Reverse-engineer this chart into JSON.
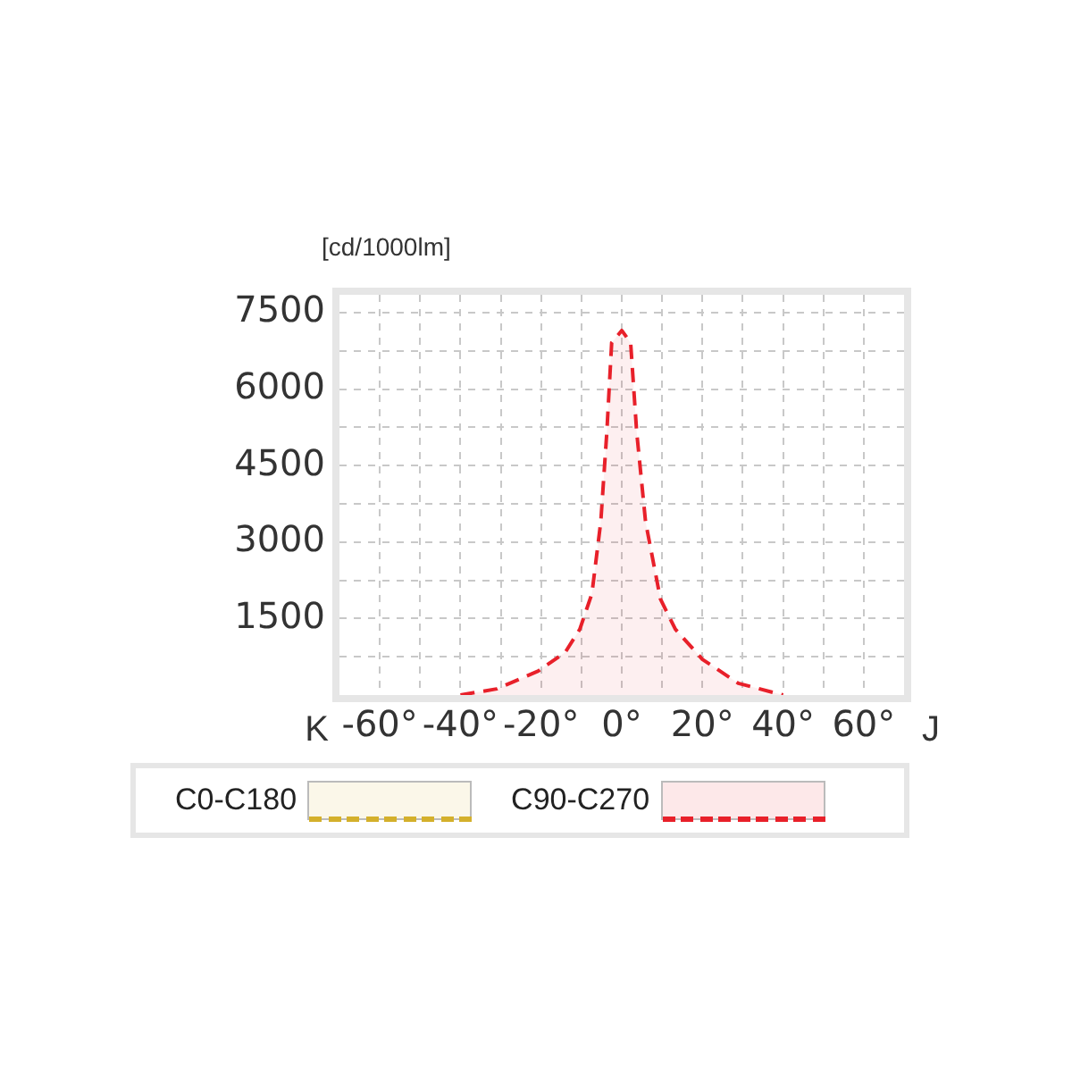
{
  "chart_data": {
    "type": "area",
    "ylabel": "[cd/1000lm]",
    "annotations": [
      "K",
      "J"
    ],
    "x": [
      -40,
      -31,
      -20.7,
      -14,
      -10.4,
      -7.4,
      -5.2,
      -3.7,
      -2.5,
      0,
      2.2,
      3.7,
      5.9,
      9.6,
      13.3,
      20,
      28.9,
      40
    ],
    "series": [
      {
        "name": "C0-C180",
        "color": "#d4b02c",
        "values": [
          null,
          null,
          null,
          null,
          null,
          null,
          null,
          null,
          null,
          null,
          null,
          null,
          null,
          null,
          null,
          null,
          null,
          null
        ]
      },
      {
        "name": "C90-C270",
        "color": "#e8202a",
        "values": [
          0,
          120,
          470,
          840,
          1290,
          1990,
          3400,
          5160,
          6910,
          7150,
          6910,
          5160,
          3400,
          1880,
          1290,
          700,
          230,
          0
        ]
      }
    ],
    "xlim": [
      -70,
      70
    ],
    "xticks": [
      {
        "value": -60,
        "label": "-60°"
      },
      {
        "value": -50,
        "label": null
      },
      {
        "value": -40,
        "label": "-40°"
      },
      {
        "value": -30,
        "label": null
      },
      {
        "value": -20,
        "label": "-20°"
      },
      {
        "value": -10,
        "label": null
      },
      {
        "value": 0,
        "label": "0°"
      },
      {
        "value": 10,
        "label": null
      },
      {
        "value": 20,
        "label": "20°"
      },
      {
        "value": 30,
        "label": null
      },
      {
        "value": 40,
        "label": "40°"
      },
      {
        "value": 50,
        "label": null
      },
      {
        "value": 60,
        "label": "60°"
      }
    ],
    "ylim": [
      0,
      7850
    ],
    "yticks": [
      {
        "value": 750,
        "label": null
      },
      1500,
      {
        "value": 2250,
        "label": null
      },
      3000,
      {
        "value": 3750,
        "label": null
      },
      4500,
      {
        "value": 5250,
        "label": null
      },
      6000,
      {
        "value": 6750,
        "label": null
      },
      7500
    ],
    "grid": true,
    "legend": "bottom",
    "line_style": "dashed",
    "marker": "none"
  }
}
